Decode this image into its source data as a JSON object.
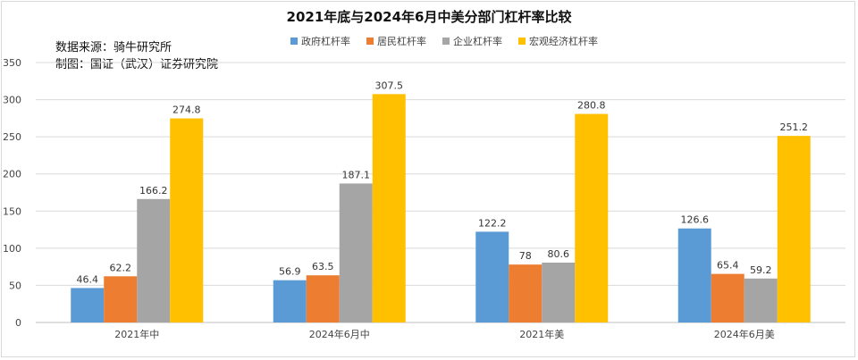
{
  "title": "2021年底与2024年6月中美分部门杠杆率比较",
  "source": {
    "line1": "数据来源：骑牛研究所",
    "line2": "制图：国证（武汉）证券研究院"
  },
  "chart_data": {
    "type": "bar",
    "title": "2021年底与2024年6月中美分部门杠杆率比较",
    "categories": [
      "2021年中",
      "2024年6月中",
      "2021年美",
      "2024年6月美"
    ],
    "series": [
      {
        "name": "政府杠杆率",
        "color": "#5b9bd5",
        "values": [
          46.4,
          56.9,
          122.2,
          126.6
        ],
        "labels": [
          "46.4",
          "56.9",
          "122.2",
          "126.6"
        ]
      },
      {
        "name": "居民杠杆率",
        "color": "#ed7d31",
        "values": [
          62.2,
          63.5,
          78,
          65.4
        ],
        "labels": [
          "62.2",
          "63.5",
          "78",
          "65.4"
        ]
      },
      {
        "name": "企业杠杆率",
        "color": "#a5a5a5",
        "values": [
          166.2,
          187.1,
          80.6,
          59.2
        ],
        "labels": [
          "166.2",
          "187.1",
          "80.6",
          "59.2"
        ]
      },
      {
        "name": "宏观经济杠杆率",
        "color": "#ffc000",
        "values": [
          274.8,
          307.5,
          280.8,
          251.2
        ],
        "labels": [
          "274.8",
          "307.5",
          "280.8",
          "251.2"
        ]
      }
    ],
    "ylim": [
      0,
      350
    ],
    "yticks": [
      "0",
      "50",
      "100",
      "150",
      "200",
      "250",
      "300",
      "350"
    ],
    "grid": true,
    "legend_position": "top"
  }
}
